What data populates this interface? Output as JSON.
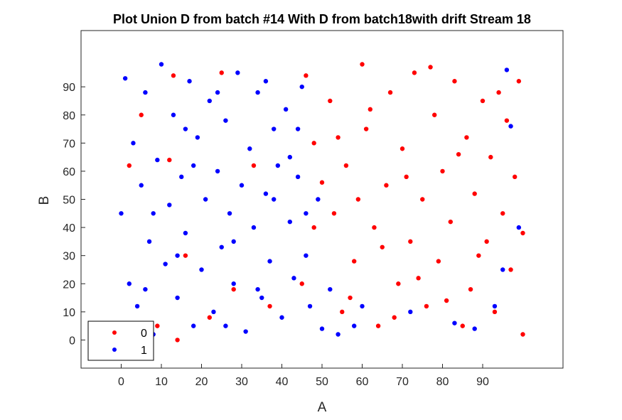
{
  "chart_data": {
    "type": "scatter",
    "title": "Plot Union D from batch #14 With D from batch18with drift Stream 18",
    "xlabel": "A",
    "ylabel": "B",
    "xlim": [
      -10,
      110
    ],
    "ylim": [
      -10,
      110
    ],
    "xticks": [
      "0",
      "10",
      "20",
      "30",
      "40",
      "50",
      "60",
      "70",
      "80",
      "90"
    ],
    "yticks": [
      "0",
      "10",
      "20",
      "30",
      "40",
      "50",
      "60",
      "70",
      "80",
      "90"
    ],
    "grid": false,
    "legend_position": "bottom-left",
    "series": [
      {
        "name": "0",
        "color": "#ff0000",
        "values": [
          [
            2,
            62
          ],
          [
            5,
            80
          ],
          [
            9,
            5
          ],
          [
            12,
            64
          ],
          [
            14,
            0
          ],
          [
            13,
            94
          ],
          [
            16,
            30
          ],
          [
            22,
            8
          ],
          [
            25,
            95
          ],
          [
            28,
            18
          ],
          [
            33,
            62
          ],
          [
            37,
            12
          ],
          [
            46,
            94
          ],
          [
            48,
            70
          ],
          [
            52,
            85
          ],
          [
            53,
            45
          ],
          [
            55,
            10
          ],
          [
            56,
            62
          ],
          [
            58,
            28
          ],
          [
            60,
            98
          ],
          [
            61,
            75
          ],
          [
            63,
            40
          ],
          [
            64,
            5
          ],
          [
            66,
            55
          ],
          [
            67,
            88
          ],
          [
            69,
            20
          ],
          [
            70,
            68
          ],
          [
            72,
            35
          ],
          [
            73,
            95
          ],
          [
            75,
            50
          ],
          [
            76,
            12
          ],
          [
            78,
            80
          ],
          [
            79,
            28
          ],
          [
            80,
            60
          ],
          [
            82,
            42
          ],
          [
            83,
            92
          ],
          [
            85,
            5
          ],
          [
            86,
            72
          ],
          [
            87,
            18
          ],
          [
            88,
            52
          ],
          [
            90,
            85
          ],
          [
            91,
            35
          ],
          [
            92,
            65
          ],
          [
            93,
            10
          ],
          [
            95,
            45
          ],
          [
            96,
            78
          ],
          [
            97,
            25
          ],
          [
            98,
            58
          ],
          [
            99,
            92
          ],
          [
            100,
            2
          ],
          [
            100,
            38
          ],
          [
            54,
            72
          ],
          [
            57,
            15
          ],
          [
            59,
            50
          ],
          [
            62,
            82
          ],
          [
            65,
            33
          ],
          [
            68,
            8
          ],
          [
            71,
            58
          ],
          [
            74,
            22
          ],
          [
            77,
            97
          ],
          [
            81,
            14
          ],
          [
            84,
            66
          ],
          [
            89,
            30
          ],
          [
            94,
            88
          ],
          [
            50,
            56
          ],
          [
            48,
            40
          ],
          [
            45,
            20
          ]
        ]
      },
      {
        "name": "1",
        "color": "#0000ff",
        "values": [
          [
            0,
            45
          ],
          [
            1,
            93
          ],
          [
            2,
            20
          ],
          [
            3,
            70
          ],
          [
            4,
            12
          ],
          [
            5,
            55
          ],
          [
            6,
            88
          ],
          [
            7,
            35
          ],
          [
            8,
            2
          ],
          [
            9,
            64
          ],
          [
            10,
            98
          ],
          [
            11,
            27
          ],
          [
            12,
            48
          ],
          [
            13,
            80
          ],
          [
            14,
            15
          ],
          [
            15,
            58
          ],
          [
            16,
            38
          ],
          [
            17,
            92
          ],
          [
            18,
            5
          ],
          [
            19,
            72
          ],
          [
            20,
            25
          ],
          [
            21,
            50
          ],
          [
            22,
            85
          ],
          [
            23,
            10
          ],
          [
            24,
            60
          ],
          [
            25,
            33
          ],
          [
            26,
            78
          ],
          [
            27,
            45
          ],
          [
            28,
            20
          ],
          [
            29,
            95
          ],
          [
            30,
            55
          ],
          [
            31,
            3
          ],
          [
            32,
            68
          ],
          [
            33,
            40
          ],
          [
            34,
            88
          ],
          [
            35,
            15
          ],
          [
            36,
            52
          ],
          [
            37,
            28
          ],
          [
            38,
            75
          ],
          [
            39,
            62
          ],
          [
            40,
            8
          ],
          [
            41,
            82
          ],
          [
            42,
            42
          ],
          [
            43,
            22
          ],
          [
            44,
            58
          ],
          [
            45,
            90
          ],
          [
            46,
            30
          ],
          [
            47,
            12
          ],
          [
            49,
            50
          ],
          [
            50,
            4
          ],
          [
            52,
            18
          ],
          [
            54,
            2
          ],
          [
            58,
            5
          ],
          [
            60,
            12
          ],
          [
            72,
            10
          ],
          [
            83,
            6
          ],
          [
            88,
            4
          ],
          [
            93,
            12
          ],
          [
            96,
            96
          ],
          [
            97,
            76
          ],
          [
            95,
            25
          ],
          [
            99,
            40
          ],
          [
            8,
            45
          ],
          [
            18,
            62
          ],
          [
            28,
            35
          ],
          [
            38,
            50
          ],
          [
            44,
            75
          ],
          [
            24,
            88
          ],
          [
            14,
            30
          ],
          [
            34,
            18
          ],
          [
            6,
            18
          ],
          [
            26,
            5
          ],
          [
            36,
            92
          ],
          [
            46,
            45
          ],
          [
            16,
            75
          ],
          [
            42,
            65
          ]
        ]
      }
    ]
  },
  "legend": {
    "items": [
      {
        "label": "0",
        "color": "#ff0000"
      },
      {
        "label": "1",
        "color": "#0000ff"
      }
    ]
  }
}
